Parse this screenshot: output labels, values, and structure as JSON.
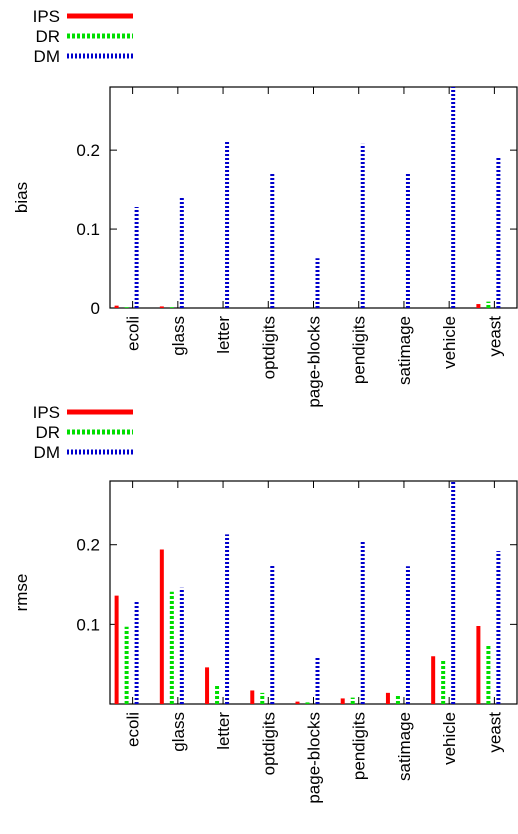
{
  "chart_data": [
    {
      "type": "bar",
      "ylabel": "bias",
      "xlabel": "",
      "title": "",
      "ylim": [
        0,
        0.28
      ],
      "yticks": [
        0,
        0.1,
        0.2
      ],
      "ytick_labels": [
        "0",
        "0.1",
        "0.2"
      ],
      "categories": [
        "ecoli",
        "glass",
        "letter",
        "optdigits",
        "page-blocks",
        "pendigits",
        "satimage",
        "vehicle",
        "yeast"
      ],
      "legend_position": "top-left",
      "series": [
        {
          "name": "IPS",
          "color": "#ff0000",
          "style": "solid",
          "values": [
            0.003,
            0.002,
            0.0,
            0.0,
            0.0,
            0.0,
            0.0,
            0.0,
            0.005
          ]
        },
        {
          "name": "DR",
          "color": "#00dd00",
          "style": "dashed",
          "values": [
            0.001,
            0.001,
            0.0,
            0.0,
            0.0,
            0.0,
            0.0,
            0.0,
            0.008
          ]
        },
        {
          "name": "DM",
          "color": "#0000cc",
          "style": "dotted",
          "values": [
            0.128,
            0.141,
            0.211,
            0.172,
            0.063,
            0.208,
            0.172,
            0.28,
            0.191
          ]
        }
      ]
    },
    {
      "type": "bar",
      "ylabel": "rmse",
      "xlabel": "",
      "title": "",
      "ylim": [
        0,
        0.28
      ],
      "yticks": [
        0.1,
        0.2
      ],
      "ytick_labels": [
        "0.1",
        "0.2"
      ],
      "categories": [
        "ecoli",
        "glass",
        "letter",
        "optdigits",
        "page-blocks",
        "pendigits",
        "satimage",
        "vehicle",
        "yeast"
      ],
      "legend_position": "top-left",
      "series": [
        {
          "name": "IPS",
          "color": "#ff0000",
          "style": "solid",
          "values": [
            0.136,
            0.194,
            0.046,
            0.017,
            0.003,
            0.007,
            0.014,
            0.06,
            0.098
          ]
        },
        {
          "name": "DR",
          "color": "#00dd00",
          "style": "dashed",
          "values": [
            0.097,
            0.141,
            0.025,
            0.014,
            0.002,
            0.008,
            0.012,
            0.055,
            0.073
          ]
        },
        {
          "name": "DM",
          "color": "#0000cc",
          "style": "dotted",
          "values": [
            0.128,
            0.146,
            0.213,
            0.174,
            0.06,
            0.204,
            0.173,
            0.28,
            0.192
          ]
        }
      ]
    }
  ]
}
